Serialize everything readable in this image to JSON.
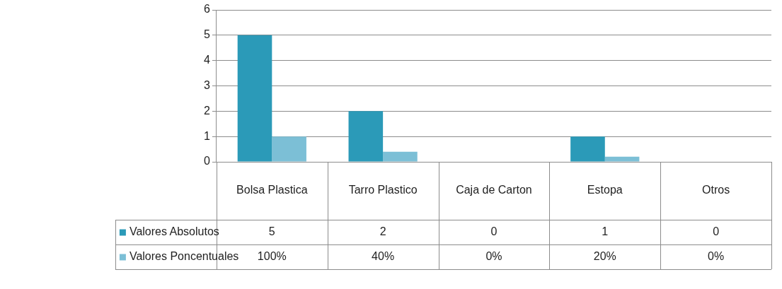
{
  "chart_data": {
    "type": "bar",
    "categories": [
      "Bolsa Plastica",
      "Tarro Plastico",
      "Caja de Carton",
      "Estopa",
      "Otros"
    ],
    "series": [
      {
        "name": "Valores Absolutos",
        "color": "#2b9ab8",
        "values": [
          5,
          2,
          0,
          1,
          0
        ],
        "value_labels": [
          "5",
          "2",
          "0",
          "1",
          "0"
        ]
      },
      {
        "name": "Valores Poncentuales",
        "color": "#7cbfd6",
        "values": [
          1,
          0.4,
          0,
          0.2,
          0
        ],
        "value_labels": [
          "100%",
          "40%",
          "0%",
          "20%",
          "0%"
        ]
      }
    ],
    "ylim": [
      0,
      6
    ],
    "yticks": [
      0,
      1,
      2,
      3,
      4,
      5,
      6
    ],
    "grid": "y",
    "legend": "bottom left"
  }
}
